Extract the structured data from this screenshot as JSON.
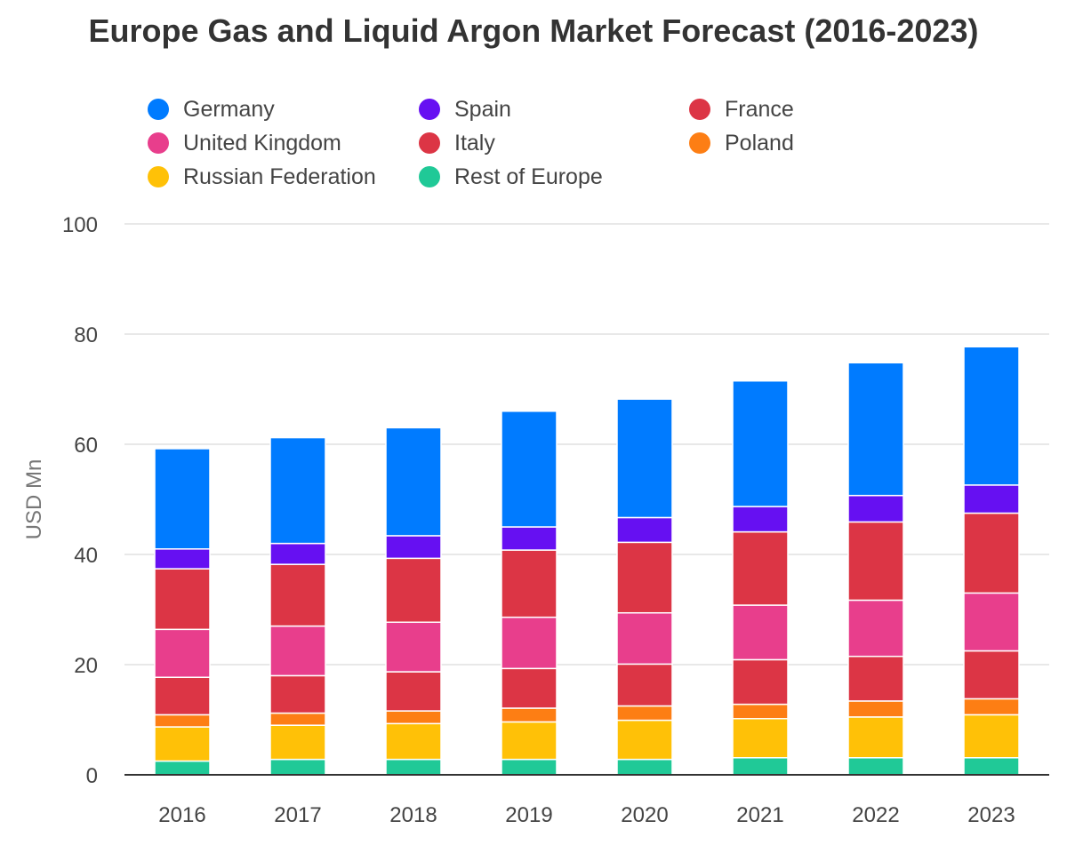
{
  "chart_data": {
    "type": "bar",
    "stacked": true,
    "title": "Europe Gas and Liquid Argon Market Forecast (2016-2023)",
    "xlabel": "",
    "ylabel": "USD Mn",
    "ylim": [
      0,
      100
    ],
    "yticks": [
      0,
      20,
      40,
      60,
      80,
      100
    ],
    "grid": true,
    "legend_position": "top",
    "categories": [
      "2016",
      "2017",
      "2018",
      "2019",
      "2020",
      "2021",
      "2022",
      "2023"
    ],
    "series": [
      {
        "name": "Rest of Europe",
        "color": "#20c997",
        "values": [
          2.5,
          2.8,
          2.8,
          2.8,
          2.8,
          3.1,
          3.1,
          3.1
        ]
      },
      {
        "name": "Russian Federation",
        "color": "#ffc107",
        "values": [
          6.2,
          6.2,
          6.5,
          6.8,
          7.1,
          7.1,
          7.4,
          7.8
        ]
      },
      {
        "name": "Poland",
        "color": "#fd7e14",
        "values": [
          2.2,
          2.2,
          2.3,
          2.5,
          2.6,
          2.6,
          2.9,
          2.9
        ]
      },
      {
        "name": "Italy",
        "color": "#dc3545",
        "values": [
          6.8,
          6.8,
          7.1,
          7.2,
          7.6,
          8.1,
          8.1,
          8.7
        ]
      },
      {
        "name": "United Kingdom",
        "color": "#e83e8c",
        "values": [
          8.7,
          9.0,
          9.0,
          9.3,
          9.3,
          9.9,
          10.2,
          10.5
        ]
      },
      {
        "name": "France",
        "color": "#dc3545",
        "values": [
          11.0,
          11.2,
          11.6,
          12.2,
          12.8,
          13.3,
          14.2,
          14.5
        ]
      },
      {
        "name": "Spain",
        "color": "#6610f2",
        "values": [
          3.6,
          3.8,
          4.1,
          4.2,
          4.5,
          4.6,
          4.8,
          5.1
        ]
      },
      {
        "name": "Germany",
        "color": "#007bff",
        "values": [
          18.2,
          19.2,
          19.6,
          21.0,
          21.5,
          22.8,
          24.1,
          25.1
        ]
      }
    ]
  },
  "legend": [
    {
      "label": "Germany",
      "color": "#007bff"
    },
    {
      "label": "Spain",
      "color": "#6610f2"
    },
    {
      "label": "France",
      "color": "#dc3545"
    },
    {
      "label": "United Kingdom",
      "color": "#e83e8c"
    },
    {
      "label": "Italy",
      "color": "#dc3545"
    },
    {
      "label": "Poland",
      "color": "#fd7e14"
    },
    {
      "label": "Russian Federation",
      "color": "#ffc107"
    },
    {
      "label": "Rest of Europe",
      "color": "#20c997"
    }
  ]
}
